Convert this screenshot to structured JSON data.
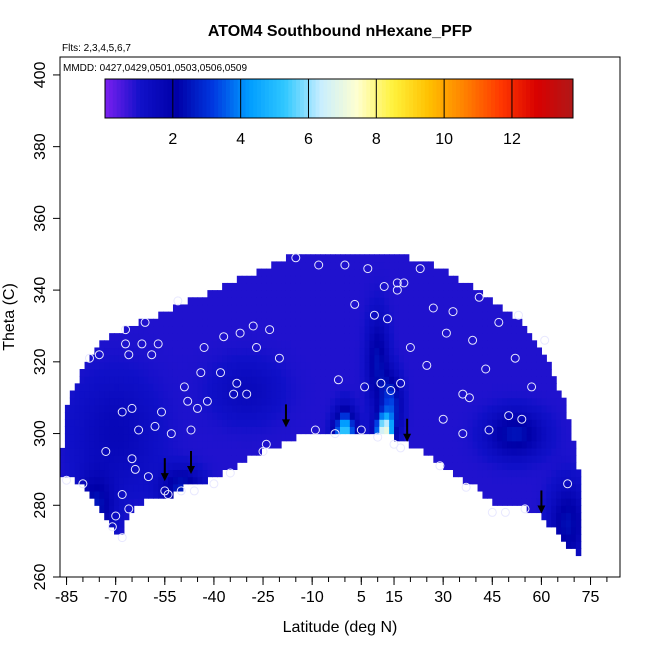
{
  "chart_data": {
    "type": "heatmap",
    "title": "ATOM4 Southbound nHexane_PFP",
    "subtitle_flights": "Flts: 2,3,4,5,6,7",
    "subtitle_dates": "MMDD: 0427,0429,0501,0503,0506,0509",
    "xlabel": "Latitude (deg N)",
    "ylabel": "Theta (C)",
    "xlim": [
      -87,
      84
    ],
    "ylim": [
      260,
      405
    ],
    "x_ticks": [
      -85,
      -70,
      -55,
      -40,
      -25,
      -10,
      5,
      15,
      30,
      45,
      60,
      75
    ],
    "x_tick_labels": [
      "-85",
      "-70",
      "-55",
      "-40",
      "-25",
      "-10",
      "5",
      "15",
      "30",
      "45",
      "60",
      "75"
    ],
    "y_ticks": [
      260,
      280,
      300,
      320,
      340,
      360,
      380,
      400
    ],
    "y_tick_labels": [
      "260",
      "280",
      "300",
      "320",
      "340",
      "360",
      "380",
      "400"
    ],
    "colorbar": {
      "range": [
        0,
        13.8
      ],
      "ticks": [
        2,
        4,
        6,
        8,
        10,
        12
      ],
      "tick_labels": [
        "2",
        "4",
        "6",
        "8",
        "10",
        "12"
      ],
      "colors": [
        "#7B20F0",
        "#1010C8",
        "#0000A8",
        "#0038E0",
        "#009CFF",
        "#30C8FF",
        "#C8EEFF",
        "#FFFFD0",
        "#FFF23C",
        "#FFC000",
        "#FF8000",
        "#FF3800",
        "#D80000",
        "#B01818"
      ]
    },
    "domain_boundary": {
      "bottom": [
        [
          -87,
          287
        ],
        [
          -83,
          286
        ],
        [
          -78,
          283
        ],
        [
          -73,
          276
        ],
        [
          -70,
          271
        ],
        [
          -68,
          272
        ],
        [
          -65,
          278
        ],
        [
          -61,
          280
        ],
        [
          -57,
          281
        ],
        [
          -53,
          282
        ],
        [
          -49,
          284
        ],
        [
          -45,
          285
        ],
        [
          -40,
          287
        ],
        [
          -35,
          289
        ],
        [
          -30,
          292
        ],
        [
          -25,
          294
        ],
        [
          -20,
          296
        ],
        [
          -15,
          298
        ],
        [
          -10,
          299
        ],
        [
          -5,
          299.5
        ],
        [
          0,
          300
        ],
        [
          5,
          300
        ],
        [
          10,
          299
        ],
        [
          15,
          298
        ],
        [
          20,
          296
        ],
        [
          25,
          293
        ],
        [
          30,
          290
        ],
        [
          35,
          287
        ],
        [
          40,
          284
        ],
        [
          45,
          280
        ],
        [
          50,
          279
        ],
        [
          55,
          278
        ],
        [
          60,
          276
        ],
        [
          64,
          272
        ],
        [
          67,
          268
        ],
        [
          71,
          266
        ]
      ],
      "top": [
        [
          71,
          290
        ],
        [
          68,
          305
        ],
        [
          64,
          315
        ],
        [
          60,
          322
        ],
        [
          55,
          329
        ],
        [
          50,
          333
        ],
        [
          45,
          336
        ],
        [
          40,
          339
        ],
        [
          35,
          342
        ],
        [
          30,
          345
        ],
        [
          25,
          347
        ],
        [
          20,
          348
        ],
        [
          15,
          349
        ],
        [
          10,
          349.5
        ],
        [
          5,
          350
        ],
        [
          0,
          350
        ],
        [
          -5,
          350
        ],
        [
          -10,
          350
        ],
        [
          -15,
          349
        ],
        [
          -20,
          347
        ],
        [
          -25,
          345
        ],
        [
          -30,
          343
        ],
        [
          -35,
          341
        ],
        [
          -40,
          339
        ],
        [
          -45,
          337
        ],
        [
          -50,
          335
        ],
        [
          -55,
          333
        ],
        [
          -60,
          331
        ],
        [
          -65,
          329
        ],
        [
          -70,
          327
        ],
        [
          -75,
          325
        ],
        [
          -80,
          318
        ],
        [
          -85,
          306
        ],
        [
          -87,
          290
        ]
      ]
    },
    "field_features": [
      {
        "x": 0,
        "y": 300,
        "value": 5.5,
        "sx": 3,
        "sy": 6
      },
      {
        "x": 12,
        "y": 301,
        "value": 6.5,
        "sx": 2.5,
        "sy": 4
      },
      {
        "x": 14,
        "y": 308,
        "value": 3.2,
        "sx": 3,
        "sy": 8
      },
      {
        "x": 10,
        "y": 320,
        "value": 2.4,
        "sx": 3,
        "sy": 12
      },
      {
        "x": -50,
        "y": 285,
        "value": 2.6,
        "sx": 6,
        "sy": 5
      },
      {
        "x": -76,
        "y": 280,
        "value": 2.4,
        "sx": 5,
        "sy": 8
      },
      {
        "x": 52,
        "y": 300,
        "value": 2.5,
        "sx": 8,
        "sy": 6
      },
      {
        "x": 68,
        "y": 275,
        "value": 2.4,
        "sx": 5,
        "sy": 10
      },
      {
        "x": -70,
        "y": 300,
        "value": 1.6,
        "sx": 12,
        "sy": 15
      },
      {
        "x": -30,
        "y": 312,
        "value": 1.5,
        "sx": 10,
        "sy": 8
      }
    ],
    "field_background": 0.9,
    "samples": [
      {
        "lat": -85,
        "theta": 287
      },
      {
        "lat": -80,
        "theta": 286
      },
      {
        "lat": -78,
        "theta": 321
      },
      {
        "lat": -75,
        "theta": 322
      },
      {
        "lat": -73,
        "theta": 295
      },
      {
        "lat": -71,
        "theta": 274
      },
      {
        "lat": -70,
        "theta": 277
      },
      {
        "lat": -68,
        "theta": 283
      },
      {
        "lat": -68,
        "theta": 306
      },
      {
        "lat": -67,
        "theta": 329
      },
      {
        "lat": -67,
        "theta": 325
      },
      {
        "lat": -66,
        "theta": 322
      },
      {
        "lat": -66,
        "theta": 279
      },
      {
        "lat": -65,
        "theta": 307
      },
      {
        "lat": -65,
        "theta": 293
      },
      {
        "lat": -64,
        "theta": 290
      },
      {
        "lat": -63,
        "theta": 301
      },
      {
        "lat": -62,
        "theta": 325
      },
      {
        "lat": -61,
        "theta": 331
      },
      {
        "lat": -60,
        "theta": 288
      },
      {
        "lat": -59,
        "theta": 322
      },
      {
        "lat": -58,
        "theta": 302
      },
      {
        "lat": -57,
        "theta": 325
      },
      {
        "lat": -56,
        "theta": 306
      },
      {
        "lat": -55,
        "theta": 284
      },
      {
        "lat": -54,
        "theta": 283
      },
      {
        "lat": -53,
        "theta": 300
      },
      {
        "lat": -51,
        "theta": 337
      },
      {
        "lat": -50,
        "theta": 284
      },
      {
        "lat": -49,
        "theta": 313
      },
      {
        "lat": -48,
        "theta": 309
      },
      {
        "lat": -47,
        "theta": 301
      },
      {
        "lat": -46,
        "theta": 284
      },
      {
        "lat": -45,
        "theta": 307
      },
      {
        "lat": -44,
        "theta": 317
      },
      {
        "lat": -43,
        "theta": 324
      },
      {
        "lat": -42,
        "theta": 309
      },
      {
        "lat": -40,
        "theta": 286
      },
      {
        "lat": -38,
        "theta": 317
      },
      {
        "lat": -37,
        "theta": 327
      },
      {
        "lat": -35,
        "theta": 289
      },
      {
        "lat": -34,
        "theta": 311
      },
      {
        "lat": -33,
        "theta": 314
      },
      {
        "lat": -32,
        "theta": 328
      },
      {
        "lat": -30,
        "theta": 311
      },
      {
        "lat": -28,
        "theta": 330
      },
      {
        "lat": -27,
        "theta": 324
      },
      {
        "lat": -25,
        "theta": 295
      },
      {
        "lat": -24,
        "theta": 297
      },
      {
        "lat": -23,
        "theta": 329
      },
      {
        "lat": -20,
        "theta": 321
      },
      {
        "lat": -9,
        "theta": 301
      },
      {
        "lat": -8,
        "theta": 347
      },
      {
        "lat": -3,
        "theta": 300
      },
      {
        "lat": -2,
        "theta": 315
      },
      {
        "lat": 0,
        "theta": 347
      },
      {
        "lat": 3,
        "theta": 336
      },
      {
        "lat": 5,
        "theta": 301
      },
      {
        "lat": 6,
        "theta": 313
      },
      {
        "lat": 7,
        "theta": 346
      },
      {
        "lat": 9,
        "theta": 333
      },
      {
        "lat": 10,
        "theta": 299
      },
      {
        "lat": 11,
        "theta": 314
      },
      {
        "lat": 12,
        "theta": 341
      },
      {
        "lat": 13,
        "theta": 332
      },
      {
        "lat": 14,
        "theta": 312
      },
      {
        "lat": 15,
        "theta": 297
      },
      {
        "lat": 16,
        "theta": 342
      },
      {
        "lat": 16,
        "theta": 340
      },
      {
        "lat": 17,
        "theta": 314
      },
      {
        "lat": 17,
        "theta": 296
      },
      {
        "lat": 18,
        "theta": 342
      },
      {
        "lat": 20,
        "theta": 324
      },
      {
        "lat": 23,
        "theta": 346
      },
      {
        "lat": 25,
        "theta": 319
      },
      {
        "lat": 27,
        "theta": 335
      },
      {
        "lat": 29,
        "theta": 291
      },
      {
        "lat": 30,
        "theta": 304
      },
      {
        "lat": 31,
        "theta": 328
      },
      {
        "lat": 33,
        "theta": 334
      },
      {
        "lat": 36,
        "theta": 311
      },
      {
        "lat": 36,
        "theta": 300
      },
      {
        "lat": 37,
        "theta": 285
      },
      {
        "lat": 38,
        "theta": 310
      },
      {
        "lat": 39,
        "theta": 326
      },
      {
        "lat": 41,
        "theta": 338
      },
      {
        "lat": 43,
        "theta": 318
      },
      {
        "lat": 44,
        "theta": 301
      },
      {
        "lat": 45,
        "theta": 278
      },
      {
        "lat": 47,
        "theta": 331
      },
      {
        "lat": 49,
        "theta": 278
      },
      {
        "lat": 50,
        "theta": 305
      },
      {
        "lat": 52,
        "theta": 321
      },
      {
        "lat": 53,
        "theta": 333
      },
      {
        "lat": 54,
        "theta": 304
      },
      {
        "lat": 55,
        "theta": 279
      },
      {
        "lat": 57,
        "theta": 313
      },
      {
        "lat": 61,
        "theta": 326
      },
      {
        "lat": 68,
        "theta": 286
      },
      {
        "lat": -68,
        "theta": 271
      },
      {
        "lat": -15,
        "theta": 349
      }
    ],
    "arrows": [
      {
        "lat": -55,
        "theta": 287
      },
      {
        "lat": -47,
        "theta": 289
      },
      {
        "lat": -18,
        "theta": 302
      },
      {
        "lat": 19,
        "theta": 298
      },
      {
        "lat": 60,
        "theta": 278
      }
    ]
  }
}
